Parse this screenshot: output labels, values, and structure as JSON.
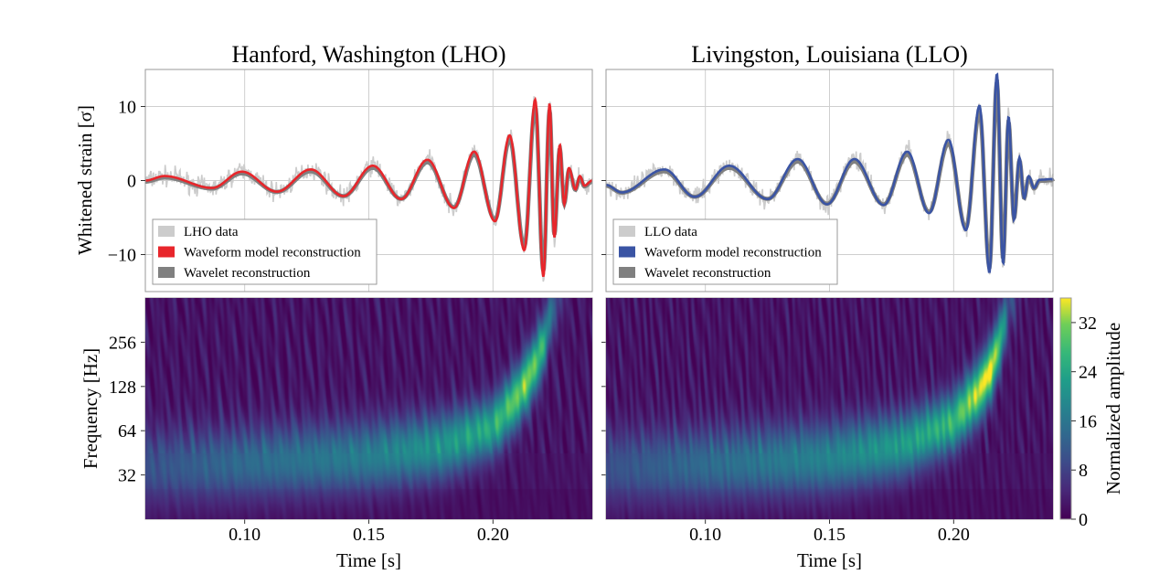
{
  "chart_data": [
    {
      "type": "line",
      "title": "Hanford, Washington (LHO)",
      "ylabel": "Whitened strain [σ]",
      "xlim": [
        0.06,
        0.24
      ],
      "ylim": [
        -15,
        15
      ],
      "yticks": [
        -10,
        0,
        10
      ],
      "ytick_labels": [
        "−10",
        "0",
        "10"
      ],
      "xticks": [
        0.1,
        0.15,
        0.2
      ],
      "grid": true,
      "legend": {
        "placement": "lower-left",
        "entries": [
          "LHO data",
          "Waveform model reconstruction",
          "Wavelet reconstruction"
        ]
      },
      "series": [
        {
          "name": "LHO data",
          "color": "#cccccc"
        },
        {
          "name": "Waveform model reconstruction",
          "color": "#e8262b",
          "points": [
            [
              0.06,
              0
            ],
            [
              0.0677,
              0.6
            ],
            [
              0.0869,
              -1.0
            ],
            [
              0.0989,
              1.2
            ],
            [
              0.113,
              -1.5
            ],
            [
              0.1266,
              1.5
            ],
            [
              0.1398,
              -2.1
            ],
            [
              0.1516,
              2.0
            ],
            [
              0.163,
              -2.5
            ],
            [
              0.1736,
              2.8
            ],
            [
              0.1843,
              -3.7
            ],
            [
              0.1924,
              3.9
            ],
            [
              0.2008,
              -5.5
            ],
            [
              0.2067,
              6.1
            ],
            [
              0.2126,
              -9.4
            ],
            [
              0.217,
              10.9
            ],
            [
              0.2203,
              -13.0
            ],
            [
              0.2228,
              10.4
            ],
            [
              0.2247,
              -7.7
            ],
            [
              0.2269,
              4.8
            ],
            [
              0.2287,
              -3.2
            ],
            [
              0.2306,
              1.7
            ],
            [
              0.2332,
              -1.2
            ],
            [
              0.235,
              0.6
            ],
            [
              0.2368,
              -0.7
            ],
            [
              0.24,
              0
            ]
          ]
        },
        {
          "name": "Wavelet reconstruction",
          "color": "#808080"
        }
      ]
    },
    {
      "type": "line",
      "title": "Livingston, Louisiana (LLO)",
      "xlim": [
        0.06,
        0.24
      ],
      "ylim": [
        -15,
        15
      ],
      "yticks": [
        -10,
        0,
        10
      ],
      "xticks": [
        0.1,
        0.15,
        0.2
      ],
      "grid": true,
      "legend": {
        "placement": "lower-left",
        "entries": [
          "LLO data",
          "Waveform model reconstruction",
          "Wavelet reconstruction"
        ]
      },
      "series": [
        {
          "name": "LLO data",
          "color": "#cccccc"
        },
        {
          "name": "Waveform model reconstruction",
          "color": "#3a54a4",
          "points": [
            [
              0.06,
              -0.6
            ],
            [
              0.0663,
              -1.6
            ],
            [
              0.0835,
              1.5
            ],
            [
              0.0957,
              -2.2
            ],
            [
              0.1096,
              2.0
            ],
            [
              0.1251,
              -2.5
            ],
            [
              0.1372,
              2.9
            ],
            [
              0.149,
              -3.2
            ],
            [
              0.16,
              2.9
            ],
            [
              0.1718,
              -3.3
            ],
            [
              0.1813,
              3.9
            ],
            [
              0.1901,
              -4.4
            ],
            [
              0.1979,
              5.5
            ],
            [
              0.2049,
              -6.7
            ],
            [
              0.2104,
              10.1
            ],
            [
              0.2144,
              -12.4
            ],
            [
              0.2174,
              14.4
            ],
            [
              0.2199,
              -11.2
            ],
            [
              0.2221,
              8.6
            ],
            [
              0.2243,
              -5.3
            ],
            [
              0.2265,
              3.1
            ],
            [
              0.2284,
              -2.4
            ],
            [
              0.2302,
              0.6
            ],
            [
              0.2324,
              -1.0
            ],
            [
              0.2346,
              0.1
            ],
            [
              0.24,
              0.2
            ]
          ]
        },
        {
          "name": "Wavelet reconstruction",
          "color": "#808080"
        }
      ]
    },
    {
      "type": "heatmap",
      "ylabel": "Frequency [Hz]",
      "xlabel": "Time [s]",
      "xlim": [
        0.06,
        0.24
      ],
      "xticks": [
        0.1,
        0.15,
        0.2
      ],
      "xtick_labels": [
        "0.10",
        "0.15",
        "0.20"
      ],
      "yscale": "log2",
      "ylim": [
        16,
        512
      ],
      "yticks": [
        32,
        64,
        128,
        256
      ],
      "ytick_labels": [
        "32",
        "64",
        "128",
        "256"
      ],
      "grid": true,
      "ridge": {
        "t": [
          0.06,
          0.1,
          0.15,
          0.18,
          0.2,
          0.21,
          0.215,
          0.22,
          0.224,
          0.23
        ],
        "f": [
          36,
          39,
          43,
          51,
          69,
          112,
          157,
          242,
          450,
          600
        ],
        "amplitude": [
          8,
          12,
          15,
          19,
          23,
          29,
          30,
          24,
          10,
          0
        ]
      }
    },
    {
      "type": "heatmap",
      "xlabel": "Time [s]",
      "xlim": [
        0.06,
        0.24
      ],
      "xticks": [
        0.1,
        0.15,
        0.2
      ],
      "xtick_labels": [
        "0.10",
        "0.15",
        "0.20"
      ],
      "yscale": "log2",
      "ylim": [
        16,
        512
      ],
      "yticks": [
        32,
        64,
        128,
        256
      ],
      "grid": true,
      "ridge": {
        "t": [
          0.06,
          0.1,
          0.15,
          0.18,
          0.2,
          0.21,
          0.215,
          0.219,
          0.222,
          0.228
        ],
        "f": [
          36,
          38,
          42,
          52,
          75,
          120,
          170,
          280,
          450,
          600
        ],
        "amplitude": [
          8,
          12,
          16,
          20,
          25,
          33,
          35,
          24,
          8,
          0
        ]
      }
    }
  ],
  "colorbar": {
    "label": "Normalized amplitude",
    "colormap": "viridis",
    "range": [
      0,
      36
    ],
    "ticks": [
      0,
      8,
      16,
      24,
      32
    ],
    "tick_labels": [
      "0",
      "8",
      "16",
      "24",
      "32"
    ]
  }
}
